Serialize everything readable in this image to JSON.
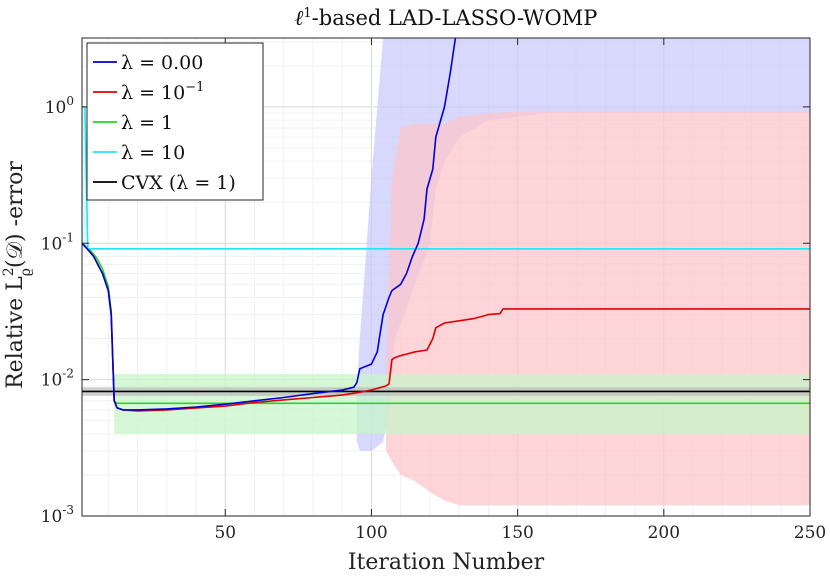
{
  "chart_data": {
    "type": "line",
    "title_prefix": "ℓ",
    "title_sup": "1",
    "title_suffix": "-based LAD-LASSO-WOMP",
    "xlabel": "Iteration Number",
    "ylabel_prefix": "Relative L",
    "ylabel_sup": "2",
    "ylabel_sub": "ϱ",
    "ylabel_suffix": "(𝒟) -error",
    "xlim": [
      1,
      250
    ],
    "ylim": [
      0.001,
      3.2
    ],
    "yscale": "log",
    "grid": true,
    "legend_position": "top-left",
    "x_ticks": [
      50,
      100,
      150,
      200,
      250
    ],
    "x_tick_labels": [
      "50",
      "100",
      "150",
      "200",
      "250"
    ],
    "y_ticks": [
      0.001,
      0.01,
      0.1,
      1
    ],
    "y_tick_base": [
      "10",
      "10",
      "10",
      "10"
    ],
    "y_tick_exp": [
      "-3",
      "-2",
      "-1",
      "0"
    ],
    "series": [
      {
        "name": "λ = 0.00",
        "legend_text": "λ = 0.00",
        "color": "#0000dd",
        "band_color": "#c9c9fb",
        "x": [
          1,
          2,
          3,
          5,
          8,
          10,
          11,
          12,
          13,
          15,
          20,
          30,
          40,
          50,
          60,
          70,
          80,
          90,
          94,
          95,
          96,
          100,
          102,
          103,
          104,
          106,
          107,
          110,
          112,
          114,
          116,
          118,
          119,
          121,
          122,
          125,
          127,
          129
        ],
        "y": [
          0.1,
          0.095,
          0.09,
          0.08,
          0.06,
          0.045,
          0.03,
          0.007,
          0.0062,
          0.006,
          0.006,
          0.0061,
          0.0063,
          0.0066,
          0.007,
          0.0074,
          0.0079,
          0.0084,
          0.0088,
          0.0095,
          0.012,
          0.013,
          0.016,
          0.022,
          0.03,
          0.04,
          0.045,
          0.05,
          0.06,
          0.08,
          0.1,
          0.15,
          0.25,
          0.35,
          0.6,
          1.0,
          1.8,
          3.5
        ],
        "band": {
          "x": [
            95,
            96,
            100,
            104,
            106,
            108,
            115,
            120,
            122,
            125,
            130,
            140,
            160,
            200,
            250
          ],
          "lower": [
            0.0035,
            0.003,
            0.003,
            0.0035,
            0.006,
            0.02,
            0.05,
            0.1,
            0.25,
            0.4,
            0.6,
            0.8,
            0.9,
            0.9,
            0.9
          ],
          "upper": [
            0.008,
            0.02,
            0.3,
            3.2,
            3.2,
            3.2,
            3.2,
            3.2,
            3.2,
            3.2,
            3.2,
            3.2,
            3.2,
            3.2,
            3.2
          ]
        }
      },
      {
        "name": "λ = 10^-1",
        "legend_text": "λ = 10",
        "legend_sup": "−1",
        "color": "#e00000",
        "band_color": "#fcc5cb",
        "x": [
          1,
          2,
          3,
          5,
          8,
          10,
          11,
          12,
          13,
          15,
          20,
          30,
          40,
          50,
          60,
          70,
          80,
          90,
          95,
          100,
          105,
          106,
          107,
          108,
          110,
          115,
          119,
          121,
          122,
          125,
          130,
          135,
          140,
          144,
          145,
          150,
          200,
          250
        ],
        "y": [
          0.1,
          0.095,
          0.09,
          0.08,
          0.06,
          0.045,
          0.03,
          0.007,
          0.0062,
          0.006,
          0.0059,
          0.006,
          0.0062,
          0.0064,
          0.0068,
          0.0071,
          0.0074,
          0.0077,
          0.008,
          0.0084,
          0.009,
          0.0093,
          0.014,
          0.0145,
          0.015,
          0.016,
          0.0165,
          0.02,
          0.024,
          0.026,
          0.027,
          0.028,
          0.03,
          0.0305,
          0.033,
          0.033,
          0.033,
          0.033
        ],
        "band": {
          "x": [
            105,
            107,
            110,
            115,
            120,
            125,
            130,
            140,
            150,
            160,
            200,
            250
          ],
          "lower": [
            0.003,
            0.0025,
            0.002,
            0.0018,
            0.0015,
            0.0013,
            0.0012,
            0.0012,
            0.0012,
            0.0012,
            0.0012,
            0.0012
          ],
          "upper": [
            0.012,
            0.3,
            0.7,
            0.75,
            0.75,
            0.75,
            0.85,
            0.9,
            0.92,
            0.93,
            0.93,
            0.93
          ]
        }
      },
      {
        "name": "λ = 1",
        "legend_text": "λ = 1",
        "color": "#1fdb1f",
        "band_color": "#c8f5c8",
        "x": [
          1,
          2,
          3,
          4,
          6,
          8,
          10,
          11,
          12,
          13,
          15,
          20,
          30,
          50,
          100,
          150,
          200,
          250
        ],
        "y": [
          0.1,
          0.096,
          0.092,
          0.088,
          0.078,
          0.065,
          0.048,
          0.032,
          0.007,
          0.0067,
          0.0067,
          0.0067,
          0.0067,
          0.0067,
          0.0067,
          0.0067,
          0.0067,
          0.0067
        ],
        "band": {
          "x": [
            12,
            13,
            250
          ],
          "lower": [
            0.004,
            0.004,
            0.004
          ],
          "upper": [
            0.011,
            0.011,
            0.011
          ]
        }
      },
      {
        "name": "λ = 10",
        "legend_text": "λ = 10",
        "color": "#22e6f0",
        "band_color": "#cff5fa",
        "x": [
          1,
          2,
          3,
          5,
          250
        ],
        "y": [
          1.0,
          1.0,
          0.091,
          0.091,
          0.091
        ],
        "band": {
          "x": [
            1,
            2,
            3
          ],
          "lower": [
            0.09,
            0.09,
            0.09
          ],
          "upper": [
            1.0,
            1.0,
            0.1
          ]
        }
      },
      {
        "name": "CVX (λ = 1)",
        "legend_text": "CVX (λ = 1)",
        "color": "#000000",
        "band_color": "#bdbdbd",
        "x": [
          1,
          250
        ],
        "y": [
          0.0082,
          0.0082
        ],
        "band": {
          "x": [
            1,
            250
          ],
          "lower": [
            0.0076,
            0.0076
          ],
          "upper": [
            0.0088,
            0.0088
          ]
        }
      }
    ]
  }
}
